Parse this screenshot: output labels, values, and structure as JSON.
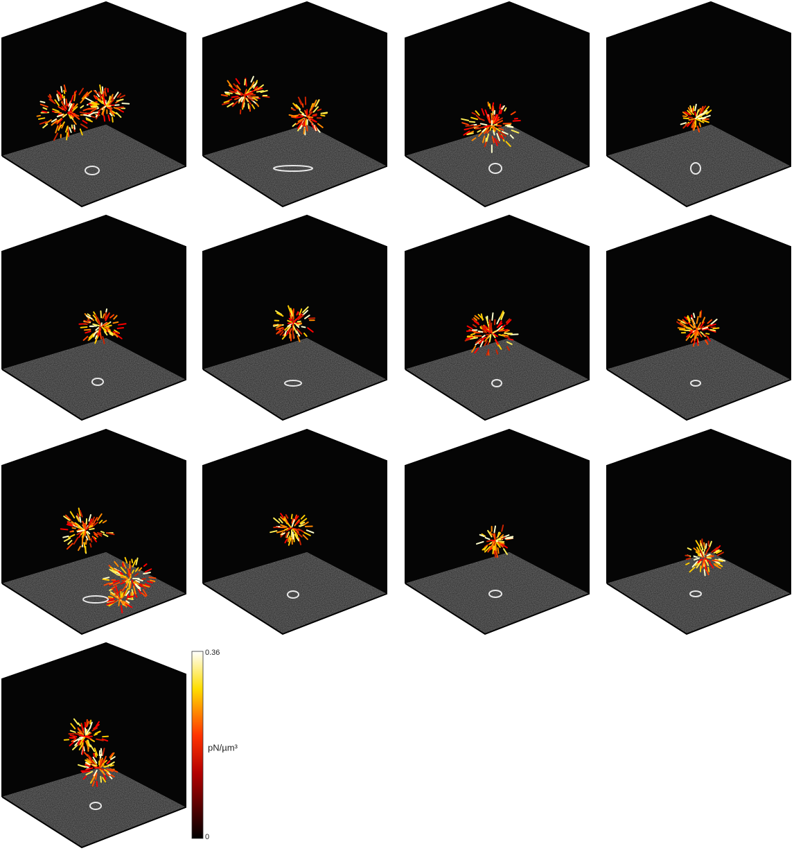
{
  "colorbar": {
    "label": "pN/µm³",
    "max_label": "0.36",
    "min_label": "0"
  }
}
